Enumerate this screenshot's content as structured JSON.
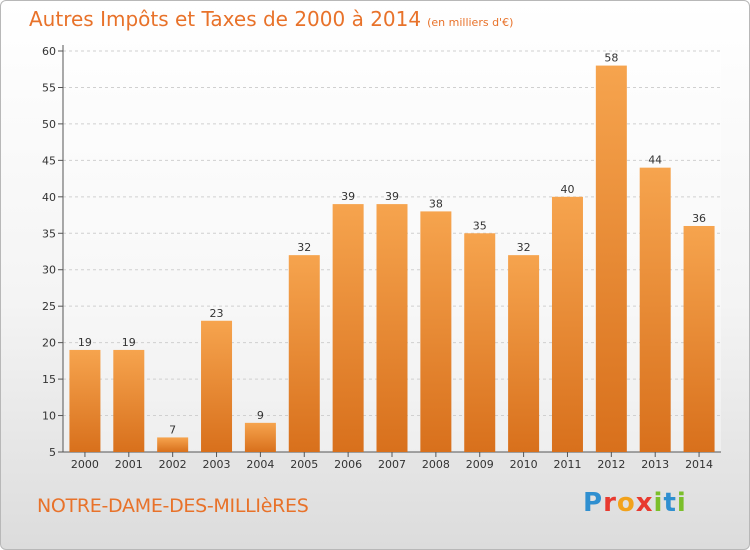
{
  "title": "Autres Impôts et Taxes de 2000 à 2014",
  "subtitle": "(en milliers d'€)",
  "commune": "NOTRE-DAME-DES-MILLIèRES",
  "logo": {
    "letters": [
      "P",
      "r",
      "o",
      "x",
      "i",
      "t",
      "i"
    ],
    "colors": [
      "#2f8fd0",
      "#e83a2f",
      "#f2a21b",
      "#e83a2f",
      "#7bbf2a",
      "#2f8fd0",
      "#7bbf2a"
    ]
  },
  "colors": {
    "bar_top": "#f6a44e",
    "bar_bottom": "#d8701c",
    "accent": "#e8722a"
  },
  "chart_data": {
    "type": "bar",
    "title": "Autres Impôts et Taxes de 2000 à 2014",
    "categories": [
      "2000",
      "2001",
      "2002",
      "2003",
      "2004",
      "2005",
      "2006",
      "2007",
      "2008",
      "2009",
      "2010",
      "2011",
      "2012",
      "2013",
      "2014"
    ],
    "values": [
      19,
      19,
      7,
      23,
      9,
      32,
      39,
      39,
      38,
      35,
      32,
      40,
      58,
      44,
      36
    ],
    "ylim": [
      5,
      60
    ],
    "yticks": [
      5,
      10,
      15,
      20,
      25,
      30,
      35,
      40,
      45,
      50,
      55,
      60
    ],
    "grid": true
  }
}
